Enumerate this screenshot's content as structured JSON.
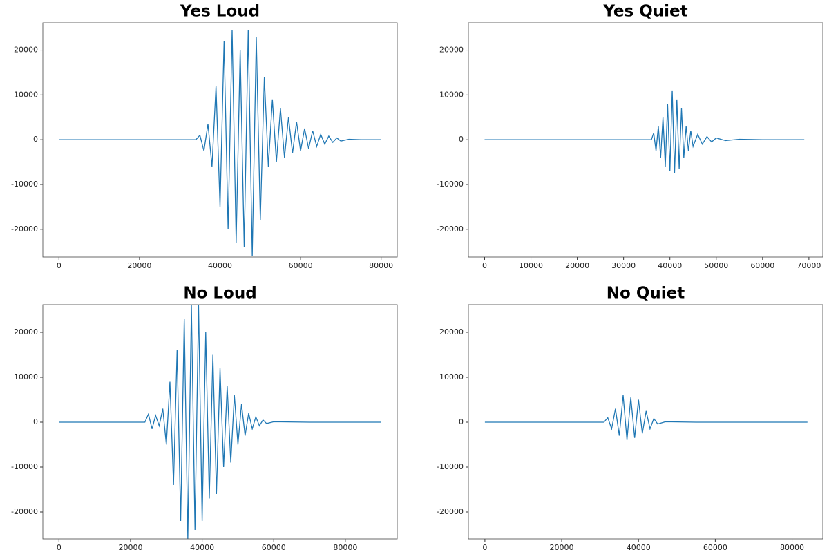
{
  "chart_data": [
    {
      "type": "line",
      "title": "Yes Loud",
      "color": "#1f77b4",
      "x": [
        0,
        10000,
        20000,
        30000,
        34000,
        35000,
        36000,
        37000,
        38000,
        39000,
        40000,
        41000,
        42000,
        43000,
        44000,
        45000,
        46000,
        47000,
        48000,
        49000,
        50000,
        51000,
        52000,
        53000,
        54000,
        55000,
        56000,
        57000,
        58000,
        59000,
        60000,
        61000,
        62000,
        63000,
        64000,
        65000,
        66000,
        67000,
        68000,
        69000,
        70000,
        72000,
        75000,
        80000
      ],
      "values": [
        0,
        0,
        0,
        0,
        0,
        1000,
        -2500,
        3500,
        -6000,
        12000,
        -15000,
        22000,
        -20000,
        24500,
        -23000,
        20000,
        -24000,
        24500,
        -26000,
        23000,
        -18000,
        14000,
        -6000,
        9000,
        -5000,
        7000,
        -4000,
        5000,
        -3000,
        4000,
        -2500,
        2500,
        -2000,
        2000,
        -1500,
        1200,
        -1000,
        800,
        -600,
        400,
        -300,
        100,
        0,
        0
      ],
      "xlim": [
        -4000,
        84000
      ],
      "ylim": [
        -26200,
        26100
      ],
      "xticks": [
        0,
        20000,
        40000,
        60000,
        80000
      ],
      "yticks": [
        -20000,
        -10000,
        0,
        10000,
        20000
      ]
    },
    {
      "type": "line",
      "title": "Yes Quiet",
      "color": "#1f77b4",
      "x": [
        0,
        10000,
        20000,
        30000,
        36000,
        36500,
        37000,
        37500,
        38000,
        38500,
        39000,
        39500,
        40000,
        40500,
        41000,
        41500,
        42000,
        42500,
        43000,
        43500,
        44000,
        44500,
        45000,
        46000,
        47000,
        48000,
        49000,
        50000,
        52000,
        55000,
        60000,
        69000
      ],
      "values": [
        0,
        0,
        0,
        0,
        0,
        1500,
        -2500,
        3000,
        -4000,
        5000,
        -6000,
        8000,
        -7000,
        11000,
        -7500,
        9000,
        -6500,
        7000,
        -4000,
        3000,
        -2500,
        2000,
        -1500,
        1200,
        -1000,
        700,
        -500,
        400,
        -200,
        100,
        0,
        0
      ],
      "xlim": [
        -3500,
        73000
      ],
      "ylim": [
        -26200,
        26100
      ],
      "xticks": [
        0,
        10000,
        20000,
        30000,
        40000,
        50000,
        60000,
        70000
      ],
      "yticks": [
        -20000,
        -10000,
        0,
        10000,
        20000
      ]
    },
    {
      "type": "line",
      "title": "No Loud",
      "color": "#1f77b4",
      "x": [
        0,
        10000,
        20000,
        24000,
        25000,
        26000,
        27000,
        28000,
        29000,
        30000,
        31000,
        32000,
        33000,
        34000,
        35000,
        36000,
        37000,
        38000,
        39000,
        40000,
        41000,
        42000,
        43000,
        44000,
        45000,
        46000,
        47000,
        48000,
        49000,
        50000,
        51000,
        52000,
        53000,
        54000,
        55000,
        56000,
        57000,
        58000,
        60000,
        70000,
        80000,
        90000
      ],
      "values": [
        0,
        0,
        0,
        0,
        1800,
        -1500,
        1500,
        -800,
        3000,
        -5000,
        9000,
        -14000,
        16000,
        -22000,
        23000,
        -26000,
        26000,
        -24000,
        26000,
        -22000,
        20000,
        -17000,
        15000,
        -16000,
        12000,
        -10000,
        8000,
        -9000,
        6000,
        -5000,
        4000,
        -3000,
        2000,
        -1500,
        1200,
        -800,
        500,
        -300,
        100,
        0,
        0,
        0
      ],
      "xlim": [
        -4500,
        94500
      ],
      "ylim": [
        -26000,
        26150
      ],
      "xticks": [
        0,
        20000,
        40000,
        60000,
        80000
      ],
      "yticks": [
        -20000,
        -10000,
        0,
        10000,
        20000
      ]
    },
    {
      "type": "line",
      "title": "No Quiet",
      "color": "#1f77b4",
      "x": [
        0,
        20000,
        31000,
        32000,
        33000,
        34000,
        35000,
        36000,
        37000,
        38000,
        39000,
        40000,
        41000,
        42000,
        43000,
        44000,
        45000,
        47000,
        55000,
        70000,
        84000
      ],
      "values": [
        0,
        0,
        0,
        1000,
        -1500,
        3000,
        -3000,
        6000,
        -4000,
        5500,
        -3500,
        5000,
        -2500,
        2500,
        -1500,
        800,
        -400,
        100,
        0,
        0,
        0
      ],
      "xlim": [
        -4300,
        88000
      ],
      "ylim": [
        -26000,
        26150
      ],
      "xticks": [
        0,
        20000,
        40000,
        60000,
        80000
      ],
      "yticks": [
        -20000,
        -10000,
        0,
        10000,
        20000
      ]
    }
  ]
}
